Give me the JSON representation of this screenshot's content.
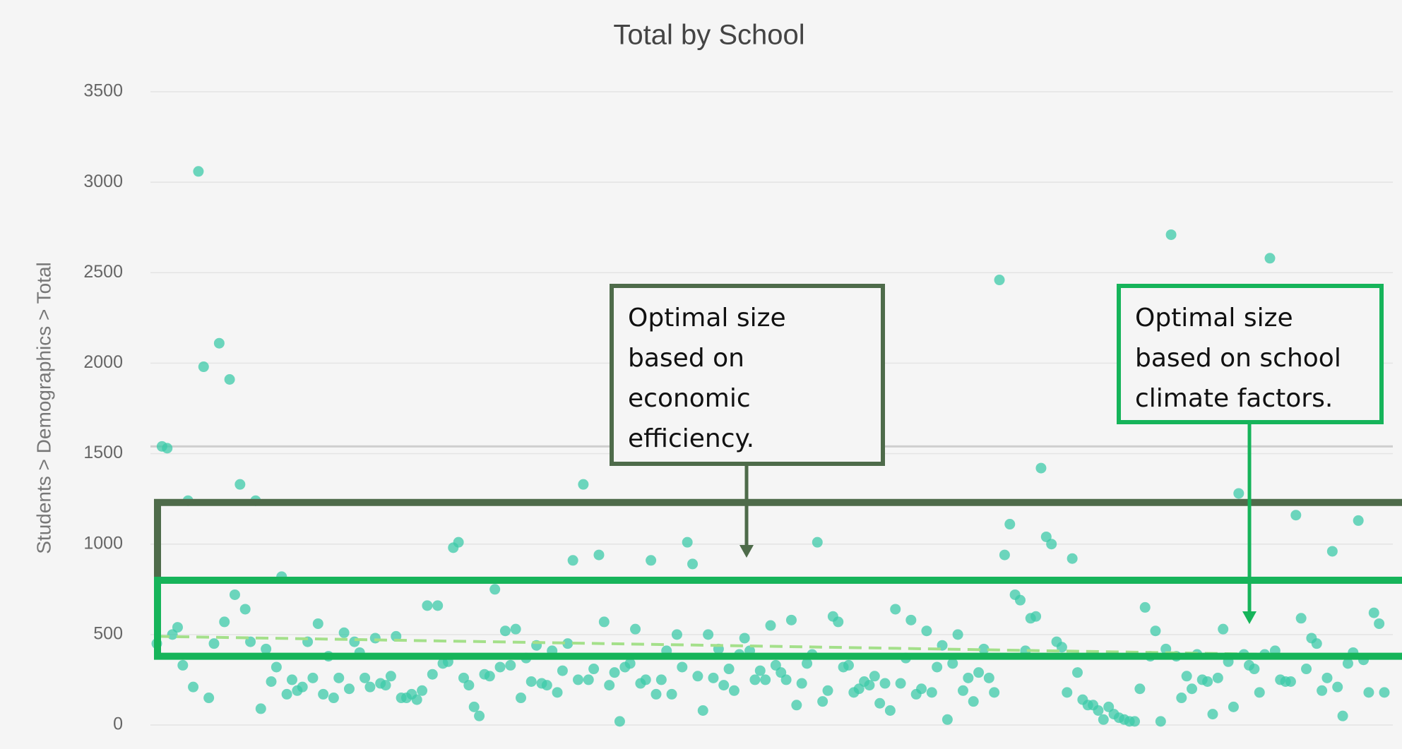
{
  "chart_data": {
    "type": "scatter",
    "title": "Total by School",
    "y_label": "Students > Demographics > Total",
    "color": "#3cc9a8",
    "ylim": [
      0,
      3500
    ],
    "yticks": [
      0,
      500,
      1000,
      1500,
      2000,
      2500,
      3000,
      3500
    ],
    "grid": true,
    "reference_line": 1540,
    "trend_line": [
      490,
      380
    ],
    "annotations": [
      {
        "text": "Optimal size based on economic efficiency.",
        "low": 800,
        "high": 1230,
        "color": "#4e6b4a"
      },
      {
        "text": "Optimal size based on school climate factors.",
        "low": 380,
        "high": 800,
        "color": "#16b45a"
      }
    ],
    "values": [
      450,
      1540,
      1530,
      500,
      540,
      330,
      1240,
      210,
      3060,
      1980,
      150,
      450,
      2110,
      570,
      1910,
      720,
      1330,
      640,
      460,
      1240,
      90,
      420,
      240,
      320,
      820,
      170,
      250,
      190,
      210,
      460,
      260,
      560,
      170,
      380,
      150,
      260,
      510,
      200,
      460,
      400,
      260,
      210,
      480,
      230,
      220,
      270,
      490,
      150,
      150,
      170,
      140,
      190,
      660,
      280,
      660,
      340,
      350,
      980,
      1010,
      260,
      220,
      100,
      50,
      280,
      270,
      750,
      320,
      520,
      330,
      530,
      150,
      370,
      240,
      440,
      230,
      220,
      410,
      180,
      300,
      450,
      910,
      250,
      1330,
      250,
      310,
      940,
      570,
      220,
      290,
      20,
      320,
      340,
      530,
      230,
      250,
      910,
      170,
      250,
      410,
      170,
      500,
      320,
      1010,
      890,
      270,
      80,
      500,
      260,
      420,
      220,
      310,
      190,
      390,
      480,
      410,
      250,
      300,
      250,
      550,
      330,
      290,
      250,
      580,
      110,
      230,
      340,
      390,
      1010,
      130,
      190,
      600,
      570,
      320,
      330,
      180,
      200,
      240,
      220,
      270,
      120,
      230,
      80,
      640,
      230,
      370,
      580,
      170,
      200,
      520,
      180,
      320,
      440,
      30,
      340,
      500,
      190,
      260,
      130,
      290,
      420,
      260,
      180,
      2460,
      940,
      1110,
      720,
      690,
      410,
      590,
      600,
      1420,
      1040,
      1000,
      460,
      430,
      180,
      920,
      290,
      140,
      110,
      110,
      80,
      30,
      100,
      60,
      40,
      30,
      20,
      20,
      200,
      650,
      380,
      520,
      20,
      420,
      2710,
      380,
      150,
      270,
      200,
      390,
      250,
      240,
      60,
      260,
      530,
      350,
      100,
      1280,
      390,
      330,
      310,
      180,
      390,
      2580,
      410,
      250,
      240,
      240,
      1160,
      590,
      310,
      480,
      450,
      190,
      260,
      960,
      210,
      50,
      340,
      400,
      1130,
      360,
      180,
      620,
      560,
      180
    ]
  }
}
